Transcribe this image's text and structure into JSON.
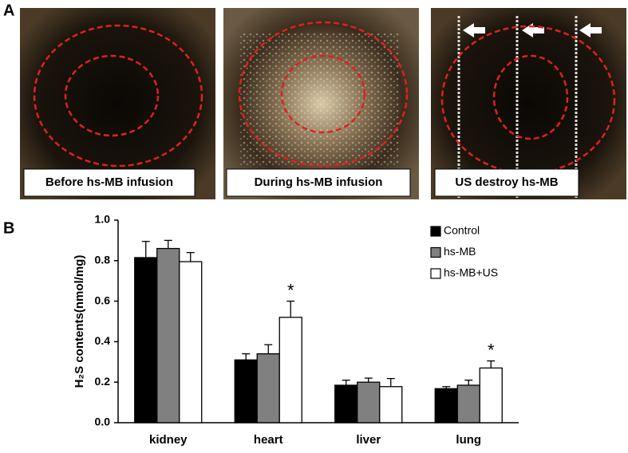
{
  "panel_a": {
    "label": "A",
    "images": [
      {
        "caption": "Before hs-MB infusion"
      },
      {
        "caption": "During hs-MB  infusion"
      },
      {
        "caption": "US destroy hs-MB"
      }
    ]
  },
  "chart_data": {
    "type": "bar",
    "panel_label": "B",
    "y_label": "H₂S contents(nmol/mg)",
    "categories": [
      "kidney",
      "heart",
      "liver",
      "lung"
    ],
    "series": [
      {
        "name": "Control",
        "color": "#000000",
        "values": [
          0.815,
          0.31,
          0.185,
          0.168
        ],
        "errors": [
          0.08,
          0.03,
          0.025,
          0.01
        ],
        "significance": [
          null,
          null,
          null,
          null
        ]
      },
      {
        "name": "hs-MB",
        "color": "#808080",
        "values": [
          0.86,
          0.34,
          0.2,
          0.185
        ],
        "errors": [
          0.04,
          0.045,
          0.02,
          0.025
        ],
        "significance": [
          null,
          null,
          null,
          null
        ]
      },
      {
        "name": "hs-MB+US",
        "color": "#ffffff",
        "values": [
          0.795,
          0.52,
          0.178,
          0.27
        ],
        "errors": [
          0.045,
          0.08,
          0.04,
          0.035
        ],
        "significance": [
          null,
          "*",
          null,
          "*"
        ]
      }
    ],
    "ylim": [
      0,
      1
    ],
    "yticks": [
      {
        "value": 0,
        "label": "0.0"
      },
      0.2,
      0.4,
      0.6,
      0.8,
      {
        "value": 1,
        "label": "1.0"
      }
    ],
    "legend": "top-right"
  }
}
